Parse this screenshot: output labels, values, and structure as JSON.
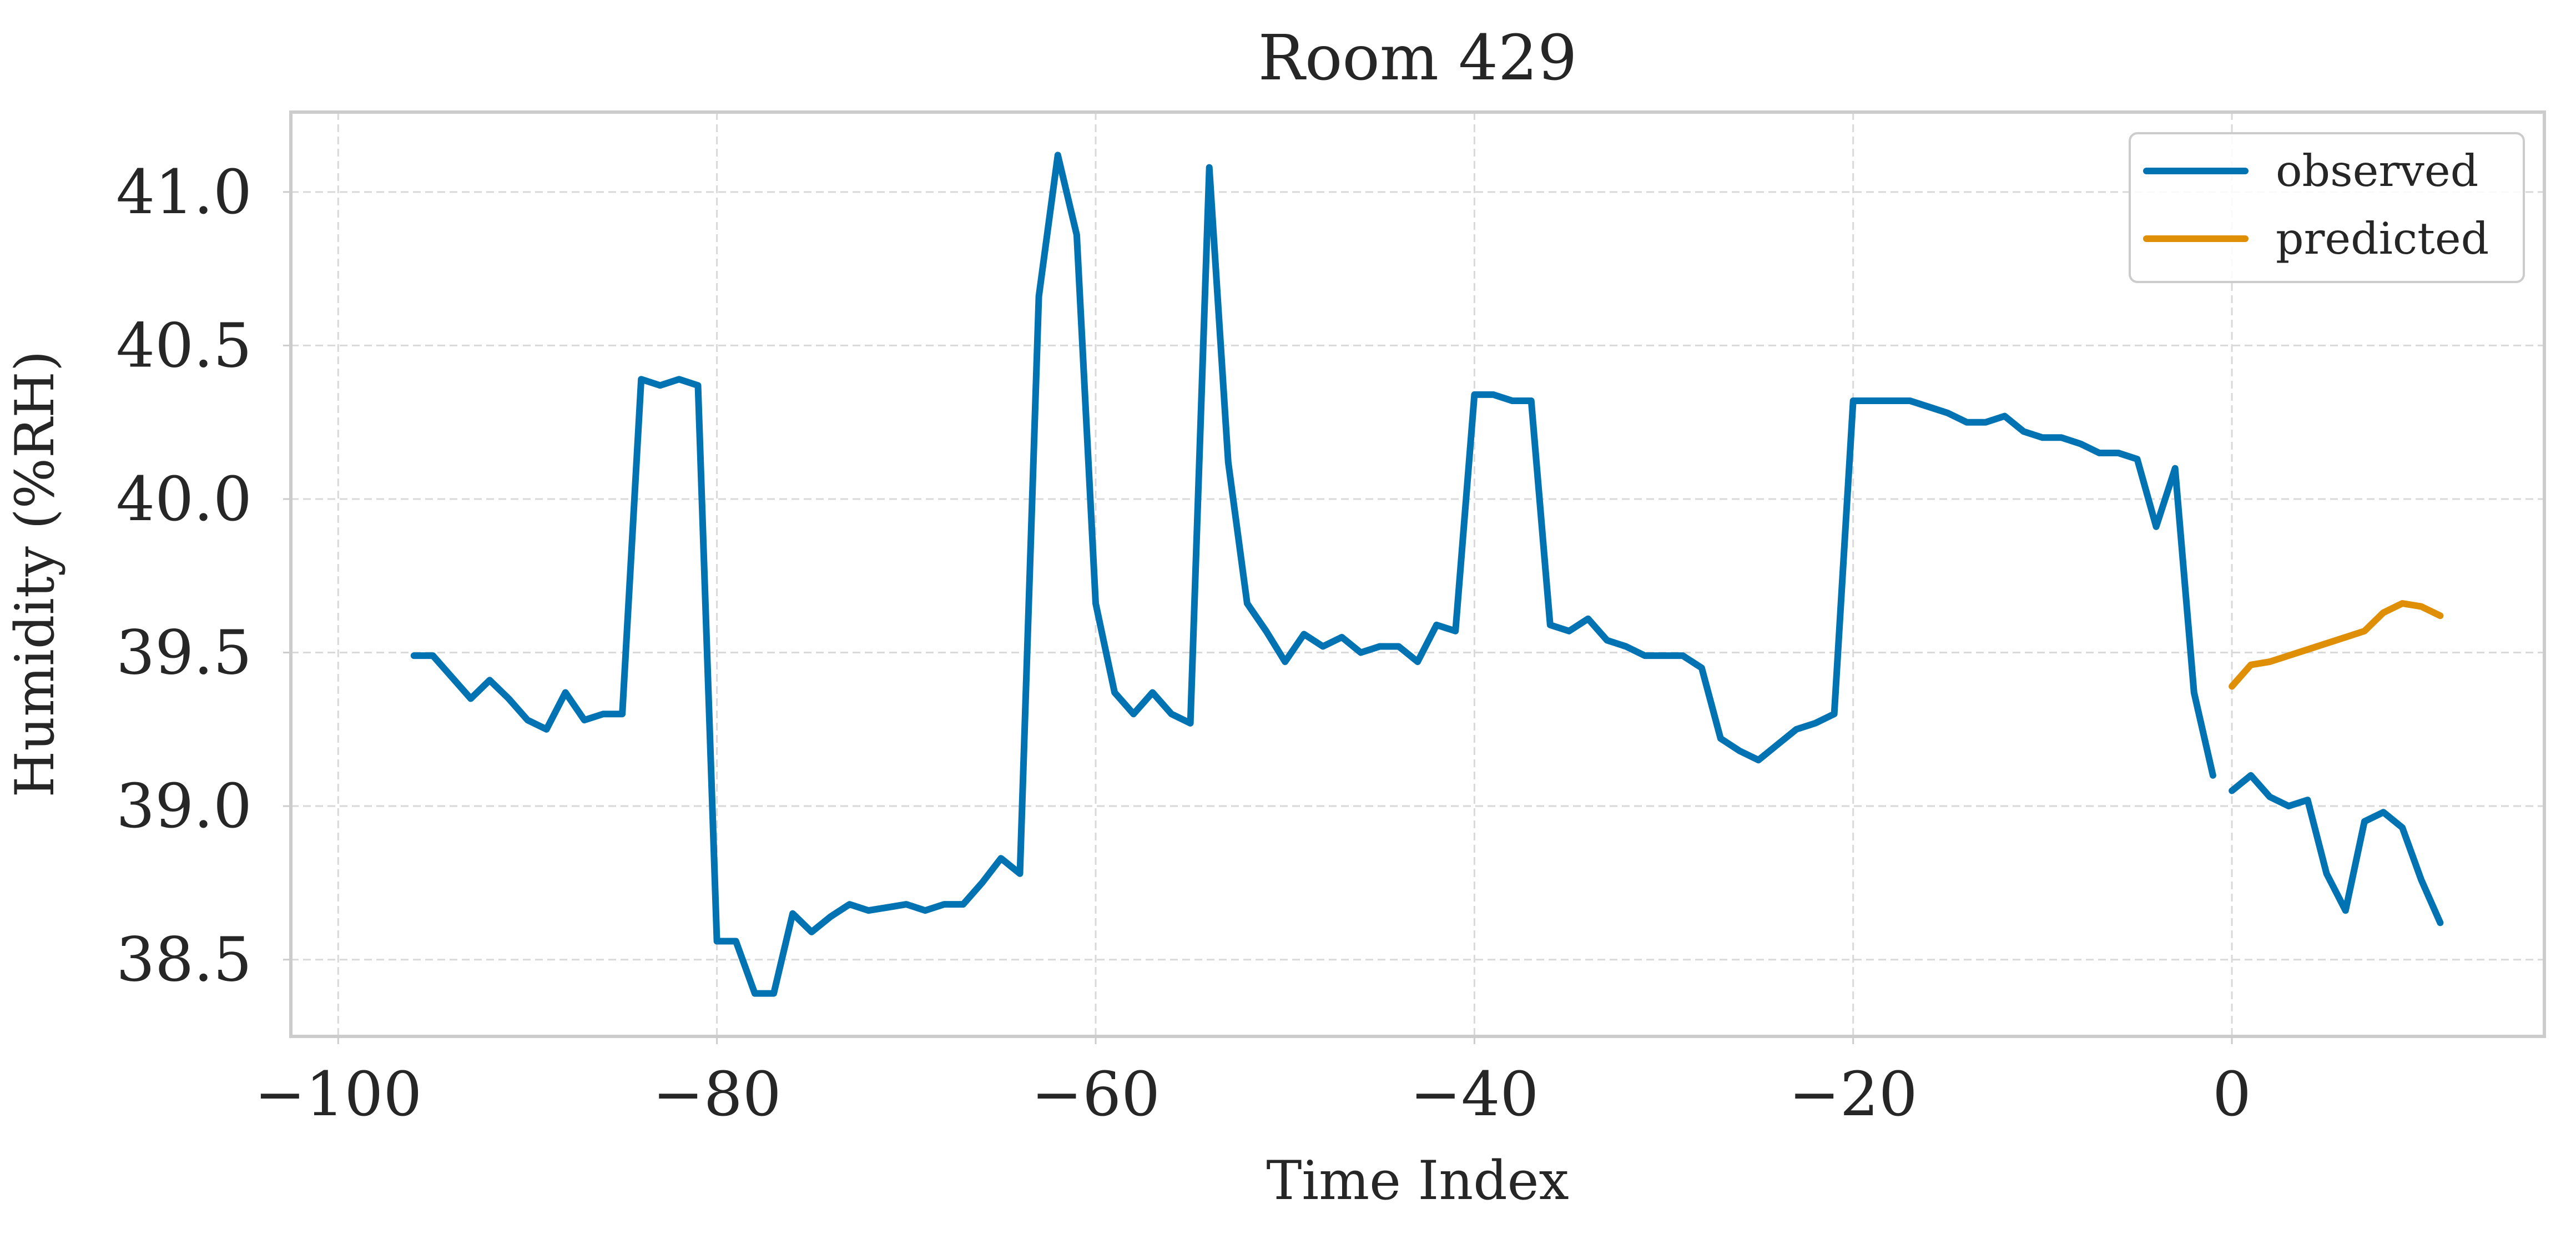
{
  "chart_data": {
    "type": "line",
    "title": "Room 429",
    "xlabel": "Time Index",
    "ylabel": "Humidity (%RH)",
    "xlim": [
      -102.5,
      16.5
    ],
    "ylim": [
      38.25,
      41.26
    ],
    "xticks": [
      -100,
      -80,
      -60,
      -40,
      -20,
      0
    ],
    "xtick_labels": [
      "−100",
      "−80",
      "−60",
      "−40",
      "−20",
      "0"
    ],
    "yticks": [
      38.5,
      39.0,
      39.5,
      40.0,
      40.5,
      41.0
    ],
    "ytick_labels": [
      "38.5",
      "39.0",
      "39.5",
      "40.0",
      "40.5",
      "41.0"
    ],
    "grid": true,
    "legend": {
      "position": "top-right"
    },
    "series": [
      {
        "name": "observed",
        "color": "#0173b2",
        "segments": [
          {
            "x": [
              -96,
              -95,
              -94,
              -93,
              -92,
              -91,
              -90,
              -89,
              -88,
              -87,
              -86,
              -85,
              -84,
              -83,
              -82,
              -81,
              -80,
              -79,
              -78,
              -77,
              -76,
              -75,
              -74,
              -73,
              -72,
              -71,
              -70,
              -69,
              -68,
              -67,
              -66,
              -65,
              -64,
              -63,
              -62,
              -61,
              -60,
              -59,
              -58,
              -57,
              -56,
              -55,
              -54,
              -53,
              -52,
              -51,
              -50,
              -49,
              -48,
              -47,
              -46,
              -45,
              -44,
              -43,
              -42,
              -41,
              -40,
              -39,
              -38,
              -37,
              -36,
              -35,
              -34,
              -33,
              -32,
              -31,
              -30,
              -29,
              -28,
              -27,
              -26,
              -25,
              -24,
              -23,
              -22,
              -21,
              -20,
              -19,
              -18,
              -17,
              -16,
              -15,
              -14,
              -13,
              -12,
              -11,
              -10,
              -9,
              -8,
              -7,
              -6,
              -5,
              -4,
              -3,
              -2,
              -1
            ],
            "y": [
              39.49,
              39.49,
              39.42,
              39.35,
              39.41,
              39.35,
              39.28,
              39.25,
              39.37,
              39.28,
              39.3,
              39.3,
              40.39,
              40.37,
              40.39,
              40.37,
              38.56,
              38.56,
              38.39,
              38.39,
              38.65,
              38.59,
              38.64,
              38.68,
              38.66,
              38.67,
              38.68,
              38.66,
              38.68,
              38.68,
              38.75,
              38.83,
              38.78,
              40.66,
              41.12,
              40.86,
              39.66,
              39.37,
              39.3,
              39.37,
              39.3,
              39.27,
              41.08,
              40.12,
              39.66,
              39.57,
              39.47,
              39.56,
              39.52,
              39.55,
              39.5,
              39.52,
              39.52,
              39.47,
              39.59,
              39.57,
              40.34,
              40.34,
              40.32,
              40.32,
              39.59,
              39.57,
              39.61,
              39.54,
              39.52,
              39.49,
              39.49,
              39.49,
              39.45,
              39.22,
              39.18,
              39.15,
              39.2,
              39.25,
              39.27,
              39.3,
              40.32,
              40.32,
              40.32,
              40.32,
              40.3,
              40.28,
              40.25,
              40.25,
              40.27,
              40.22,
              40.2,
              40.2,
              40.18,
              40.15,
              40.15,
              40.13,
              39.91,
              40.1,
              39.37,
              39.1
            ]
          },
          {
            "x": [
              0,
              1,
              2,
              3,
              4,
              5,
              6,
              7,
              8,
              9,
              10,
              11
            ],
            "y": [
              39.05,
              39.1,
              39.03,
              39.0,
              39.02,
              38.78,
              38.66,
              38.95,
              38.98,
              38.93,
              38.76,
              38.62
            ]
          }
        ]
      },
      {
        "name": "predicted",
        "color": "#de8f05",
        "segments": [
          {
            "x": [
              0,
              1,
              2,
              3,
              4,
              5,
              6,
              7,
              8,
              9,
              10,
              11
            ],
            "y": [
              39.39,
              39.46,
              39.47,
              39.49,
              39.51,
              39.53,
              39.55,
              39.57,
              39.63,
              39.66,
              39.65,
              39.62
            ]
          }
        ]
      }
    ]
  }
}
